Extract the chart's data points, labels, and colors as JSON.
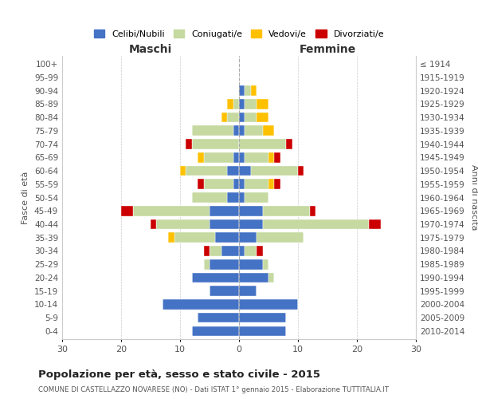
{
  "age_groups": [
    "0-4",
    "5-9",
    "10-14",
    "15-19",
    "20-24",
    "25-29",
    "30-34",
    "35-39",
    "40-44",
    "45-49",
    "50-54",
    "55-59",
    "60-64",
    "65-69",
    "70-74",
    "75-79",
    "80-84",
    "85-89",
    "90-94",
    "95-99",
    "100+"
  ],
  "birth_years": [
    "2010-2014",
    "2005-2009",
    "2000-2004",
    "1995-1999",
    "1990-1994",
    "1985-1989",
    "1980-1984",
    "1975-1979",
    "1970-1974",
    "1965-1969",
    "1960-1964",
    "1955-1959",
    "1950-1954",
    "1945-1949",
    "1940-1944",
    "1935-1939",
    "1930-1934",
    "1925-1929",
    "1920-1924",
    "1915-1919",
    "≤ 1914"
  ],
  "male": {
    "celibe": [
      8,
      7,
      13,
      5,
      8,
      5,
      3,
      4,
      5,
      5,
      2,
      1,
      2,
      1,
      0,
      1,
      0,
      0,
      0,
      0,
      0
    ],
    "coniugato": [
      0,
      0,
      0,
      0,
      0,
      1,
      2,
      7,
      9,
      13,
      6,
      5,
      7,
      5,
      8,
      7,
      2,
      1,
      0,
      0,
      0
    ],
    "vedovo": [
      0,
      0,
      0,
      0,
      0,
      0,
      0,
      1,
      0,
      0,
      0,
      0,
      1,
      1,
      0,
      0,
      1,
      1,
      0,
      0,
      0
    ],
    "divorziato": [
      0,
      0,
      0,
      0,
      0,
      0,
      1,
      0,
      1,
      2,
      0,
      1,
      0,
      0,
      1,
      0,
      0,
      0,
      0,
      0,
      0
    ]
  },
  "female": {
    "nubile": [
      8,
      8,
      10,
      3,
      5,
      4,
      1,
      3,
      4,
      4,
      1,
      1,
      2,
      1,
      0,
      1,
      1,
      1,
      1,
      0,
      0
    ],
    "coniugata": [
      0,
      0,
      0,
      0,
      1,
      1,
      2,
      8,
      18,
      8,
      4,
      4,
      8,
      4,
      8,
      3,
      2,
      2,
      1,
      0,
      0
    ],
    "vedova": [
      0,
      0,
      0,
      0,
      0,
      0,
      0,
      0,
      0,
      0,
      0,
      1,
      0,
      1,
      0,
      2,
      2,
      2,
      1,
      0,
      0
    ],
    "divorziata": [
      0,
      0,
      0,
      0,
      0,
      0,
      1,
      0,
      2,
      1,
      0,
      1,
      1,
      1,
      1,
      0,
      0,
      0,
      0,
      0,
      0
    ]
  },
  "colors": {
    "celibe": "#4472c4",
    "coniugato": "#c5d9a0",
    "vedovo": "#ffc000",
    "divorziato": "#cc0000"
  },
  "xlim": 30,
  "title_main": "Popolazione per età, sesso e stato civile - 2015",
  "title_sub": "COMUNE DI CASTELLAZZO NOVARESE (NO) - Dati ISTAT 1° gennaio 2015 - Elaborazione TUTTITALIA.IT",
  "legend_labels": [
    "Celibi/Nubili",
    "Coniugati/e",
    "Vedovi/e",
    "Divorziati/e"
  ],
  "xlabel_left": "Maschi",
  "xlabel_right": "Femmine",
  "ylabel_left": "Fasce di età",
  "ylabel_right": "Anni di nascita",
  "bg_color": "#ffffff",
  "grid_color": "#cccccc",
  "tick_color": "#555555"
}
